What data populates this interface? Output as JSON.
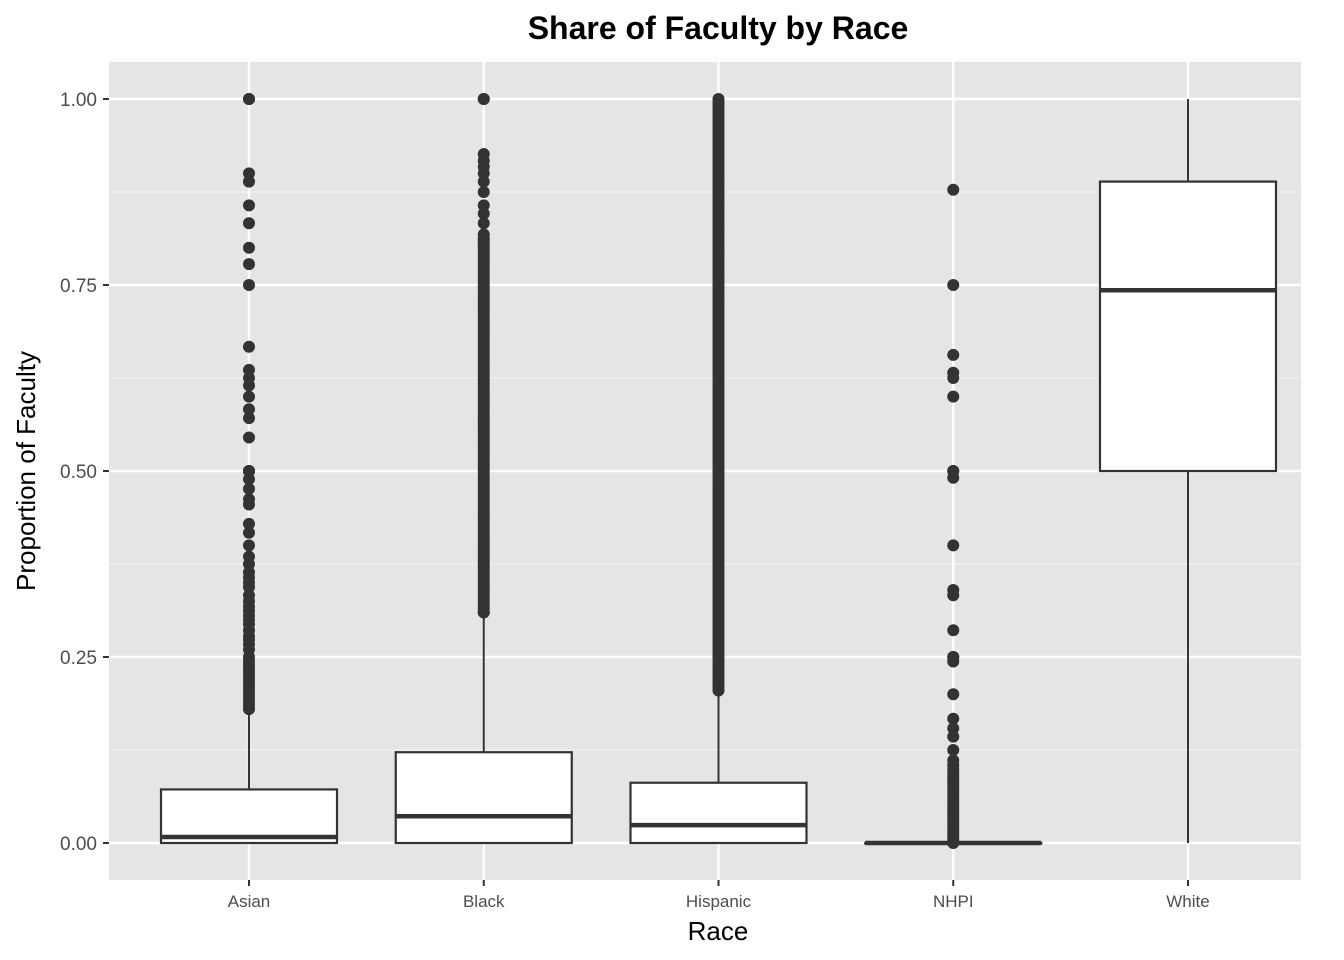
{
  "chart_data": {
    "type": "boxplot",
    "title": "Share of Faculty by Race",
    "xlabel": "Race",
    "ylabel": "Proportion of Faculty",
    "ylim": [
      -0.05,
      1.05
    ],
    "yticks": [
      0.0,
      0.25,
      0.5,
      0.75,
      1.0
    ],
    "ytick_labels": [
      "0.00",
      "0.25",
      "0.50",
      "0.75",
      "1.00"
    ],
    "grid": true,
    "categories": [
      "Asian",
      "Black",
      "Hispanic",
      "NHPI",
      "White"
    ],
    "boxes": [
      {
        "category": "Asian",
        "lower_whisker": 0.0,
        "q1": 0.0,
        "median": 0.008,
        "q3": 0.072,
        "upper_whisker": 0.175,
        "outliers": [
          1.0,
          1.0,
          0.9,
          0.889,
          0.857,
          0.833,
          0.8,
          0.778,
          0.75,
          0.667,
          0.636,
          0.625,
          0.615,
          0.6,
          0.583,
          0.571,
          0.545,
          0.5,
          0.5,
          0.5,
          0.489,
          0.476,
          0.462,
          0.455,
          0.429,
          0.417,
          0.4,
          0.385,
          0.375,
          0.364,
          0.357,
          0.35,
          0.344,
          0.333,
          0.325,
          0.318,
          0.312,
          0.306,
          0.3,
          0.294,
          0.286,
          0.278,
          0.273,
          0.267,
          0.26,
          0.25,
          0.245,
          0.24,
          0.235,
          0.23,
          0.225,
          0.22,
          0.215,
          0.21,
          0.205,
          0.2,
          0.195,
          0.19,
          0.185,
          0.18
        ]
      },
      {
        "category": "Black",
        "lower_whisker": 0.0,
        "q1": 0.0,
        "median": 0.036,
        "q3": 0.122,
        "upper_whisker": 0.305,
        "outliers_dense_range": [
          0.31,
          0.812
        ],
        "outliers": [
          1.0,
          1.0,
          0.926,
          0.917,
          0.909,
          0.9,
          0.889,
          0.875,
          0.857,
          0.846,
          0.833,
          0.818,
          0.812,
          0.8,
          0.31
        ]
      },
      {
        "category": "Hispanic",
        "lower_whisker": 0.0,
        "q1": 0.0,
        "median": 0.024,
        "q3": 0.081,
        "upper_whisker": 0.2,
        "outliers_dense_range": [
          0.205,
          1.0
        ],
        "outliers": []
      },
      {
        "category": "NHPI",
        "lower_whisker": 0.0,
        "q1": 0.0,
        "median": 0.0,
        "q3": 0.0,
        "upper_whisker": 0.0,
        "outliers_dense_range": [
          0.0,
          0.105
        ],
        "outliers": [
          0.878,
          0.75,
          0.656,
          0.632,
          0.625,
          0.6,
          0.5,
          0.5,
          0.491,
          0.4,
          0.34,
          0.333,
          0.286,
          0.25,
          0.25,
          0.244,
          0.2,
          0.167,
          0.154,
          0.143,
          0.125,
          0.111
        ]
      },
      {
        "category": "White",
        "lower_whisker": 0.0,
        "q1": 0.5,
        "median": 0.743,
        "q3": 0.889,
        "upper_whisker": 1.0,
        "outliers": []
      }
    ]
  }
}
